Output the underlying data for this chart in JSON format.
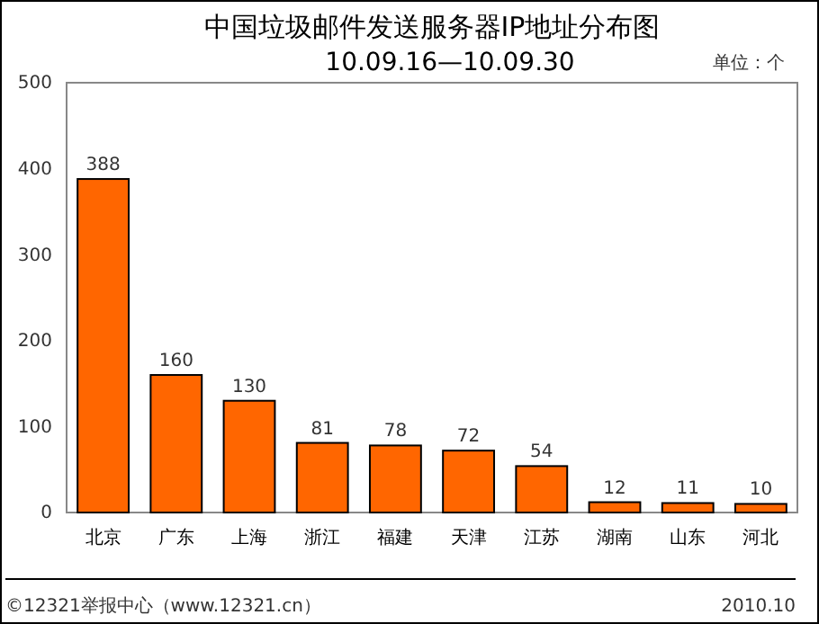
{
  "chart_data": {
    "type": "bar",
    "title": "中国垃圾邮件发送服务器IP地址分布图",
    "subtitle": "10.09.16—10.09.30",
    "ylabel": "单位：个",
    "categories": [
      "北京",
      "广东",
      "上海",
      "浙江",
      "福建",
      "天津",
      "江苏",
      "湖南",
      "山东",
      "河北"
    ],
    "values": [
      388,
      160,
      130,
      81,
      78,
      72,
      54,
      12,
      11,
      10
    ],
    "color": "#ff6600",
    "ylim": [
      0,
      500
    ],
    "yticks": [
      0,
      100,
      200,
      300,
      400,
      500
    ],
    "grid": false,
    "data_labels": true,
    "annotations": [
      "©12321举报中心（www.12321.cn）",
      "2010.10"
    ]
  }
}
